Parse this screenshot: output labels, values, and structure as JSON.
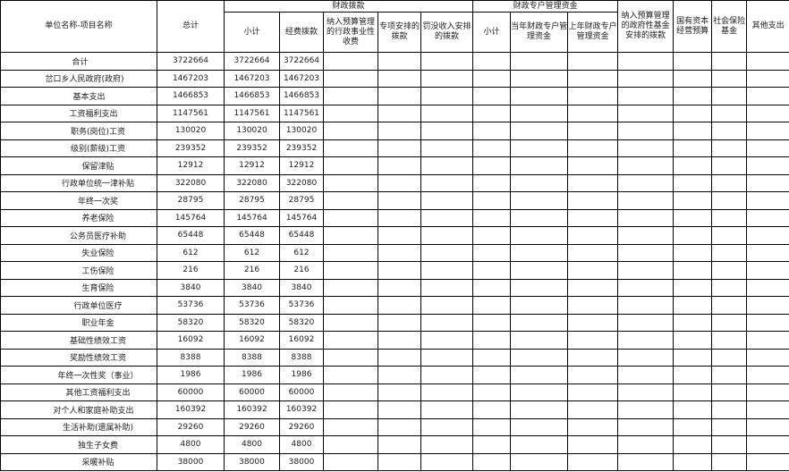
{
  "headers": {
    "name": "单位名称-项目名称",
    "total": "总计",
    "fiscal_group": "财政拨款",
    "fiscal_subtotal": "小计",
    "fiscal_funding": "经费拨款",
    "fiscal_admin_fees": "纳入预算管理的行政事业性收费",
    "fiscal_special": "专项安排的拨款",
    "fiscal_confiscated": "罚没收入安排的拨款",
    "special_group": "财政专户管理资金",
    "special_subtotal": "小计",
    "special_current": "当年财政专户管理资金",
    "special_previous": "上年财政专户管理资金",
    "gov_fund": "纳入预算管理的政府性基金安排的拨款",
    "state_capital": "国有资本经营预算",
    "social_insurance": "社会保险基金",
    "other": "其他支出"
  },
  "rows": [
    {
      "name": "合计",
      "level": 0,
      "total": "3722664",
      "subtotal": "3722664",
      "funding": "3722664"
    },
    {
      "name": "岔口乡人民政府(政府)",
      "level": 1,
      "total": "1467203",
      "subtotal": "1467203",
      "funding": "1467203"
    },
    {
      "name": "基本支出",
      "level": 2,
      "total": "1466853",
      "subtotal": "1466853",
      "funding": "1466853"
    },
    {
      "name": "工资福利支出",
      "level": 3,
      "total": "1147561",
      "subtotal": "1147561",
      "funding": "1147561"
    },
    {
      "name": "职务(岗位)工资",
      "level": 4,
      "total": "130020",
      "subtotal": "130020",
      "funding": "130020"
    },
    {
      "name": "级别(薪级)工资",
      "level": 4,
      "total": "239352",
      "subtotal": "239352",
      "funding": "239352"
    },
    {
      "name": "保留津贴",
      "level": 4,
      "total": "12912",
      "subtotal": "12912",
      "funding": "12912"
    },
    {
      "name": "行政单位统一津补贴",
      "level": 4,
      "total": "322080",
      "subtotal": "322080",
      "funding": "322080"
    },
    {
      "name": "年终一次奖",
      "level": 4,
      "total": "28795",
      "subtotal": "28795",
      "funding": "28795"
    },
    {
      "name": "养老保险",
      "level": 4,
      "total": "145764",
      "subtotal": "145764",
      "funding": "145764"
    },
    {
      "name": "公务员医疗补助",
      "level": 4,
      "total": "65448",
      "subtotal": "65448",
      "funding": "65448"
    },
    {
      "name": "失业保险",
      "level": 4,
      "total": "612",
      "subtotal": "612",
      "funding": "612"
    },
    {
      "name": "工伤保险",
      "level": 4,
      "total": "216",
      "subtotal": "216",
      "funding": "216"
    },
    {
      "name": "生育保险",
      "level": 4,
      "total": "3840",
      "subtotal": "3840",
      "funding": "3840"
    },
    {
      "name": "行政单位医疗",
      "level": 4,
      "total": "53736",
      "subtotal": "53736",
      "funding": "53736"
    },
    {
      "name": "职业年金",
      "level": 4,
      "total": "58320",
      "subtotal": "58320",
      "funding": "58320"
    },
    {
      "name": "基础性绩效工资",
      "level": 4,
      "total": "16092",
      "subtotal": "16092",
      "funding": "16092"
    },
    {
      "name": "奖励性绩效工资",
      "level": 4,
      "total": "8388",
      "subtotal": "8388",
      "funding": "8388"
    },
    {
      "name": "年终一次性奖（事业）",
      "level": 4,
      "total": "1986",
      "subtotal": "1986",
      "funding": "1986"
    },
    {
      "name": "其他工资福利支出",
      "level": 4,
      "total": "60000",
      "subtotal": "60000",
      "funding": "60000"
    },
    {
      "name": "对个人和家庭补助支出",
      "level": 3,
      "total": "160392",
      "subtotal": "160392",
      "funding": "160392"
    },
    {
      "name": "生活补助(遗属补助)",
      "level": 4,
      "total": "29260",
      "subtotal": "29260",
      "funding": "29260"
    },
    {
      "name": "独生子女费",
      "level": 4,
      "total": "4800",
      "subtotal": "4800",
      "funding": "4800"
    },
    {
      "name": "采暖补贴",
      "level": 4,
      "total": "38000",
      "subtotal": "38000",
      "funding": "38000"
    }
  ]
}
